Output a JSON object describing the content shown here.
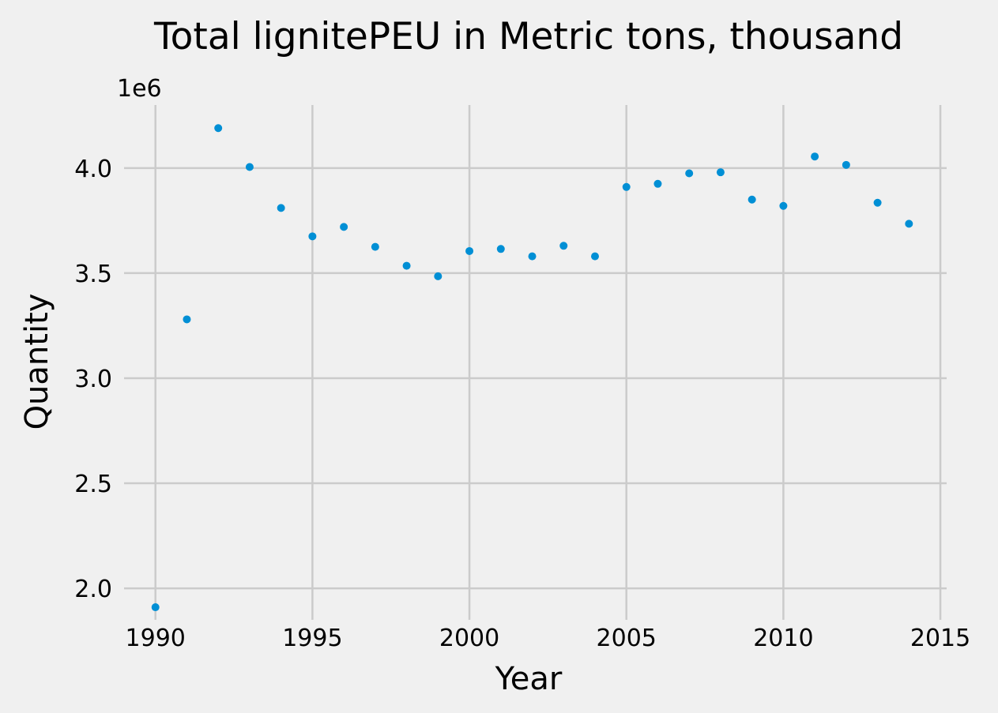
{
  "chart_data": {
    "type": "scatter",
    "title": "Total lignitePEU in Metric tons,  thousand",
    "xlabel": "Year",
    "ylabel": "Quantity",
    "y_multiplier_label": "1e6",
    "xlim": [
      1989.0,
      2015.2
    ],
    "ylim": [
      1.85,
      4.3
    ],
    "x_ticks": [
      1990,
      1995,
      2000,
      2005,
      2010,
      2015
    ],
    "y_ticks": [
      2.0,
      2.5,
      3.0,
      3.5,
      4.0
    ],
    "y_tick_labels": [
      "2.0",
      "2.5",
      "3.0",
      "3.5",
      "4.0"
    ],
    "grid": true,
    "color": "#008fd5",
    "x": [
      1990,
      1991,
      1992,
      1993,
      1994,
      1995,
      1996,
      1997,
      1998,
      1999,
      2000,
      2001,
      2002,
      2003,
      2004,
      2005,
      2006,
      2007,
      2008,
      2009,
      2010,
      2011,
      2012,
      2013,
      2014
    ],
    "y": [
      1.91,
      3.28,
      4.19,
      4.005,
      3.81,
      3.675,
      3.72,
      3.625,
      3.535,
      3.485,
      3.605,
      3.615,
      3.58,
      3.63,
      3.58,
      3.91,
      3.925,
      3.975,
      3.98,
      3.85,
      3.82,
      4.055,
      4.015,
      3.835,
      3.735
    ]
  }
}
